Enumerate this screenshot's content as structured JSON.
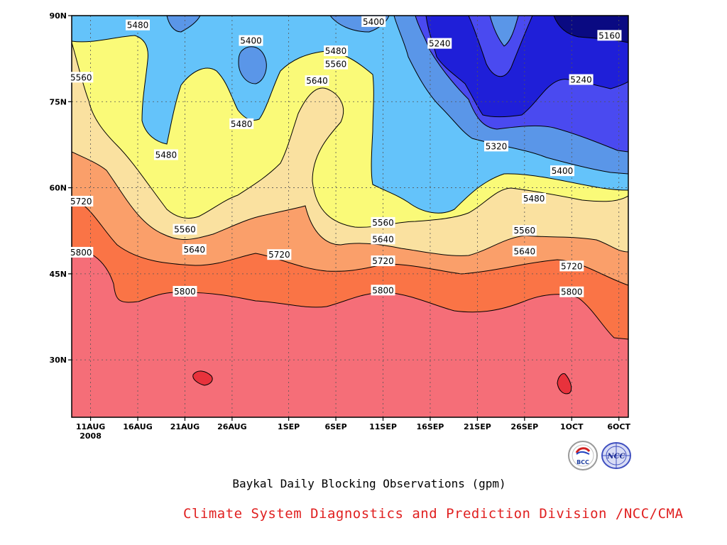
{
  "chart_data": {
    "type": "heatmap",
    "subtype": "filled-contour (Hovmoller time-latitude)",
    "title": "Baykal Daily Blocking Observations (gpm)",
    "credit": "Climate System Diagnostics and Prediction Division /NCC/CMA",
    "x_axis": {
      "type": "date",
      "range": [
        "2008-08-09",
        "2008-10-07"
      ],
      "ticks": [
        "11AUG",
        "16AUG",
        "21AUG",
        "26AUG",
        "1SEP",
        "6SEP",
        "11SEP",
        "16SEP",
        "21SEP",
        "26SEP",
        "1OCT",
        "6OCT"
      ],
      "tick_dates": [
        "2008-08-11",
        "2008-08-16",
        "2008-08-21",
        "2008-08-26",
        "2008-09-01",
        "2008-09-06",
        "2008-09-11",
        "2008-09-16",
        "2008-09-21",
        "2008-09-26",
        "2008-10-01",
        "2008-10-06"
      ],
      "year_label": "2008"
    },
    "y_axis": {
      "range": [
        20,
        90
      ],
      "ticks": [
        "30N",
        "45N",
        "60N",
        "75N",
        "90N"
      ],
      "tick_values": [
        30,
        45,
        60,
        75,
        90
      ]
    },
    "grid": true,
    "contour_levels": [
      5160,
      5240,
      5320,
      5400,
      5480,
      5560,
      5640,
      5720,
      5800
    ],
    "fill_colors": [
      "#0a0a82",
      "#1f1fd8",
      "#4a4af0",
      "#5a96e8",
      "#64c3fa",
      "#fafa78",
      "#fae1a0",
      "#fa9f6a",
      "#fa7446",
      "#f56e78",
      "#e8323c"
    ],
    "contour_labels": [
      {
        "text": "5480",
        "date": "2008-08-16",
        "lat": 88.3
      },
      {
        "text": "5400",
        "date": "2008-08-28",
        "lat": 85.6
      },
      {
        "text": "5400",
        "date": "2008-09-10",
        "lat": 88.9
      },
      {
        "text": "5240",
        "date": "2008-09-17",
        "lat": 85.1
      },
      {
        "text": "5160",
        "date": "2008-10-05",
        "lat": 86.5
      },
      {
        "text": "5480",
        "date": "2008-09-06",
        "lat": 83.8
      },
      {
        "text": "5560",
        "date": "2008-09-06",
        "lat": 81.5
      },
      {
        "text": "5640",
        "date": "2008-09-04",
        "lat": 78.6
      },
      {
        "text": "5560",
        "date": "2008-08-10",
        "lat": 79.2
      },
      {
        "text": "5480",
        "date": "2008-08-27",
        "lat": 71.1
      },
      {
        "text": "5480",
        "date": "2008-08-19",
        "lat": 65.7
      },
      {
        "text": "5240",
        "date": "2008-10-02",
        "lat": 78.8
      },
      {
        "text": "5320",
        "date": "2008-09-23",
        "lat": 67.2
      },
      {
        "text": "5400",
        "date": "2008-09-30",
        "lat": 62.9
      },
      {
        "text": "5480",
        "date": "2008-09-27",
        "lat": 58.1
      },
      {
        "text": "5720",
        "date": "2008-08-10",
        "lat": 57.6
      },
      {
        "text": "5560",
        "date": "2008-08-21",
        "lat": 52.7
      },
      {
        "text": "5560",
        "date": "2008-09-11",
        "lat": 53.9
      },
      {
        "text": "5640",
        "date": "2008-09-11",
        "lat": 51.0
      },
      {
        "text": "5560",
        "date": "2008-09-26",
        "lat": 52.5
      },
      {
        "text": "5640",
        "date": "2008-08-22",
        "lat": 49.2
      },
      {
        "text": "5720",
        "date": "2008-08-31",
        "lat": 48.3
      },
      {
        "text": "5800",
        "date": "2008-08-10",
        "lat": 48.7
      },
      {
        "text": "5720",
        "date": "2008-09-11",
        "lat": 47.2
      },
      {
        "text": "5640",
        "date": "2008-09-26",
        "lat": 48.9
      },
      {
        "text": "5720",
        "date": "2008-10-01",
        "lat": 46.3
      },
      {
        "text": "5800",
        "date": "2008-08-21",
        "lat": 41.9
      },
      {
        "text": "5800",
        "date": "2008-09-11",
        "lat": 42.1
      },
      {
        "text": "5800",
        "date": "2008-10-01",
        "lat": 41.8
      }
    ]
  },
  "logos": [
    {
      "name": "bcc-logo",
      "text": "BCC"
    },
    {
      "name": "ncc-logo",
      "text": "NCC"
    }
  ]
}
